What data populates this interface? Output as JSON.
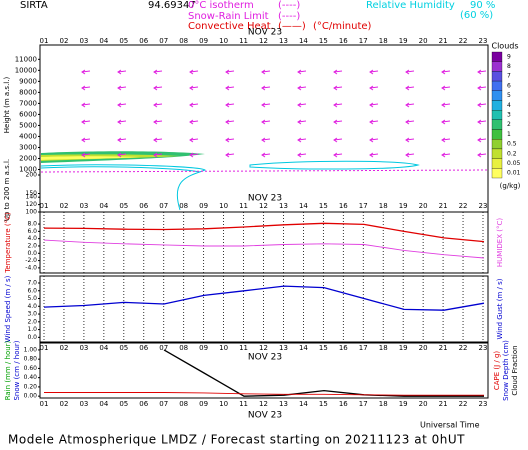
{
  "header": {
    "station": "SIRTA",
    "coords": "94.69347",
    "legend": [
      {
        "label": "0°C isotherm",
        "key": "(----)"
      },
      {
        "label": "Snow-Rain Limit",
        "key": "(----)"
      },
      {
        "label": "Convective Heat.",
        "key": "(——)",
        "units": "(°C/minute)"
      }
    ],
    "humidity": {
      "label": "Relative Humidity",
      "high": "90 %",
      "low": "(60 %)"
    }
  },
  "date_label": "NOV 23",
  "hours": [
    "01",
    "02",
    "03",
    "04",
    "05",
    "06",
    "07",
    "08",
    "09",
    "10",
    "11",
    "12",
    "13",
    "14",
    "15",
    "16",
    "17",
    "18",
    "19",
    "20",
    "21",
    "22",
    "23"
  ],
  "time_label": "Universal Time",
  "footer": "Modele Atmospherique LMDZ / Forecast starting on 20211123 at 0hUT",
  "chart_data": [
    {
      "type": "contour",
      "y_label": "Height (m a.s.l.)",
      "ylim": [
        500,
        12300
      ],
      "yticks": [
        1000,
        2000,
        3000,
        4000,
        5000,
        6000,
        7000,
        8000,
        9000,
        10000,
        11000
      ],
      "low_label": "Up to 200 m a.s.l.",
      "low_ylim": [
        100,
        200
      ],
      "low_yticks": [
        100,
        120,
        140,
        150,
        200
      ],
      "colorbar": {
        "title": "Clouds",
        "units": "(g/kg)",
        "levels": [
          9,
          8,
          7,
          6,
          5,
          4,
          3,
          2,
          1,
          0.5,
          0.2,
          0.05,
          0.01
        ],
        "colors": [
          "#7a00a0",
          "#9b30d0",
          "#5a50e0",
          "#4070f0",
          "#3090f0",
          "#20b0e0",
          "#20c0b0",
          "#30c070",
          "#40c040",
          "#90d030",
          "#c0e030",
          "#e8f040",
          "#ffff60"
        ]
      }
    },
    {
      "type": "line",
      "y_label": "Temperature (°C)",
      "y2_label": "HUMIDEX (°C)",
      "x": [
        1,
        3,
        5,
        7,
        9,
        11,
        13,
        15,
        17,
        19,
        21,
        23
      ],
      "xlim": [
        0.8,
        23.2
      ],
      "ylim": [
        -5.4,
        11.3
      ],
      "yticks": [
        {
          "value": -4,
          "label": "-4.0"
        },
        {
          "value": -2,
          "label": "-2.0"
        },
        {
          "value": 0,
          "label": "0.0"
        },
        {
          "value": 2,
          "label": "2.0"
        },
        {
          "value": 4,
          "label": "4.0"
        },
        {
          "value": 6,
          "label": "6.0"
        },
        {
          "value": 8,
          "label": "8.0"
        }
      ],
      "series": [
        {
          "color": "#e00000",
          "values": [
            6.9,
            6.8,
            6.6,
            6.5,
            6.7,
            7.2,
            7.8,
            8.2,
            7.9,
            6.0,
            4.2,
            3.2
          ]
        },
        {
          "color": "#e040e0",
          "values": [
            3.6,
            3.0,
            2.6,
            2.3,
            2.0,
            2.0,
            2.4,
            2.6,
            2.4,
            0.8,
            -0.4,
            -1.3
          ]
        }
      ]
    },
    {
      "type": "line",
      "y_label": "Wind Speed (m / s)",
      "y2_label": "Wind Gust (m / s)",
      "x": [
        1,
        3,
        5,
        7,
        9,
        11,
        13,
        15,
        17,
        19,
        21,
        23
      ],
      "xlim": [
        0.8,
        23.2
      ],
      "ylim": [
        -0.6,
        7.9
      ],
      "yticks": [
        {
          "value": 0,
          "label": "0.0"
        },
        {
          "value": 1,
          "label": "1.0"
        },
        {
          "value": 2,
          "label": "2.0"
        },
        {
          "value": 3,
          "label": "3.0"
        },
        {
          "value": 4,
          "label": "4.0"
        },
        {
          "value": 5,
          "label": "5.0"
        },
        {
          "value": 6,
          "label": "6.0"
        },
        {
          "value": 7,
          "label": "7.0"
        }
      ],
      "series": [
        {
          "color": "#0000d0",
          "values": [
            3.9,
            4.1,
            4.5,
            4.3,
            5.4,
            6.0,
            6.6,
            6.4,
            5.0,
            3.6,
            3.5,
            4.4
          ]
        }
      ]
    },
    {
      "type": "line",
      "y_label": "Rain (mm / hour)",
      "y_label_2": "Snow (cm / hour)",
      "y2_labels": [
        "CAPE (J / g)",
        "Snow Depth (cm)",
        "Cloud Fraction"
      ],
      "x": [
        1,
        3,
        5,
        7,
        9,
        11,
        13,
        15,
        17,
        19,
        21,
        23
      ],
      "xlim": [
        0.8,
        23.2
      ],
      "ylim": [
        -0.04,
        1.15
      ],
      "yticks": [
        {
          "value": 0,
          "label": "0.00"
        },
        {
          "value": 0.2,
          "label": "0.20"
        },
        {
          "value": 0.4,
          "label": "0.40"
        },
        {
          "value": 0.6,
          "label": "0.60"
        },
        {
          "value": 0.8,
          "label": "0.80"
        },
        {
          "value": 1,
          "label": "1.00"
        }
      ],
      "series": [
        {
          "color": "#000000",
          "values": [
            null,
            null,
            null,
            1.0,
            0.5,
            0.0,
            0.02,
            0.12,
            0.03,
            0.0,
            0.0,
            0.0
          ]
        },
        {
          "color": "#e00000",
          "values": [
            0.08,
            0.08,
            0.08,
            0.08,
            0.07,
            0.05,
            0.04,
            0.04,
            0.03,
            0.02,
            0.02,
            0.02
          ]
        }
      ]
    }
  ]
}
